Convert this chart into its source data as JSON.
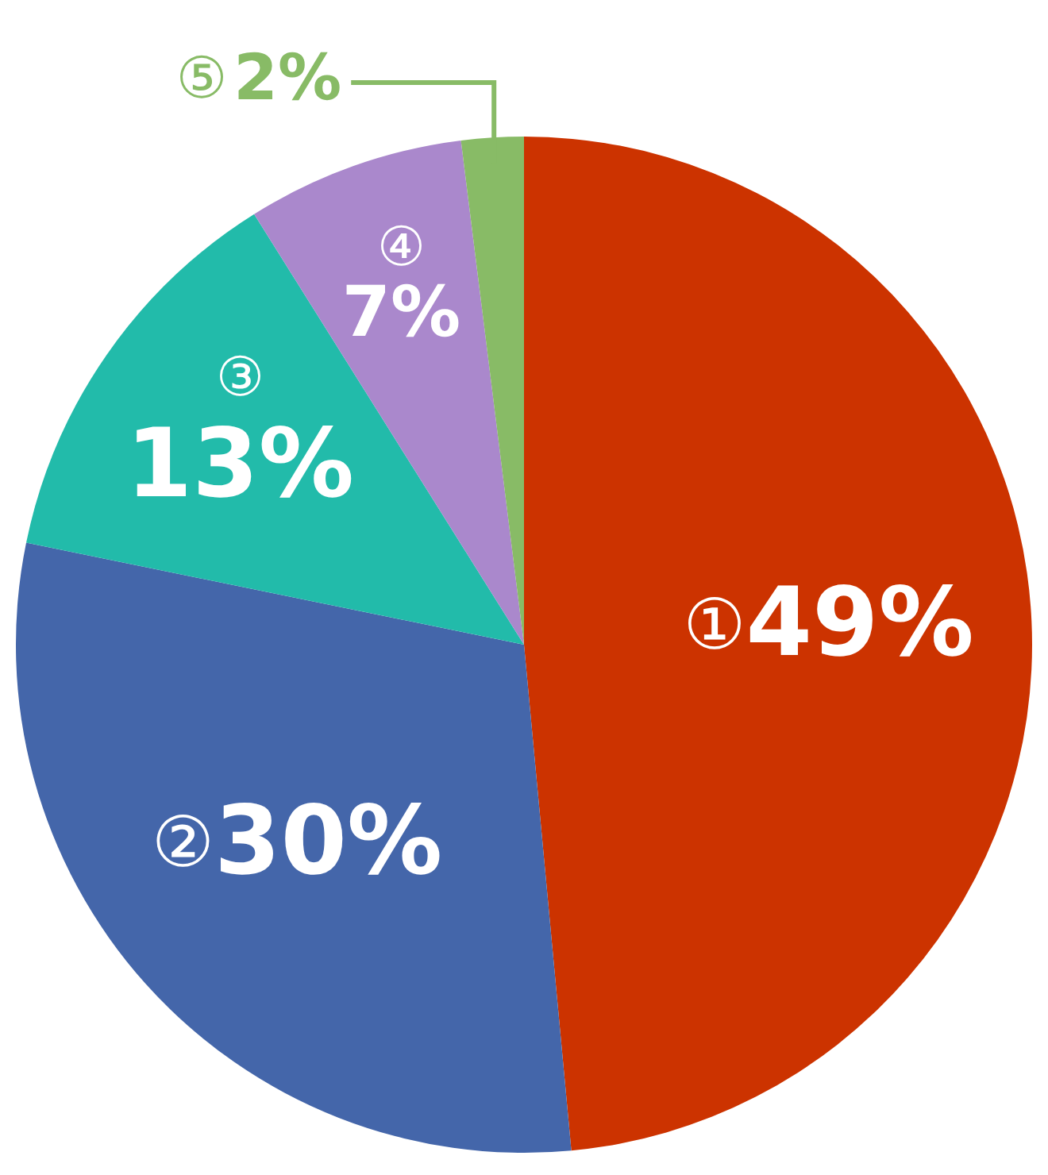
{
  "chart_data": {
    "type": "pie",
    "categories": [
      "①",
      "②",
      "③",
      "④",
      "⑤"
    ],
    "values": [
      49,
      30,
      13,
      7,
      2
    ],
    "colors": [
      "#cc3300",
      "#4466aa",
      "#22bbaa",
      "#aa88cc",
      "#88bb66"
    ],
    "value_labels": [
      "49%",
      "30%",
      "13%",
      "7%",
      "2%"
    ],
    "legend": false
  }
}
